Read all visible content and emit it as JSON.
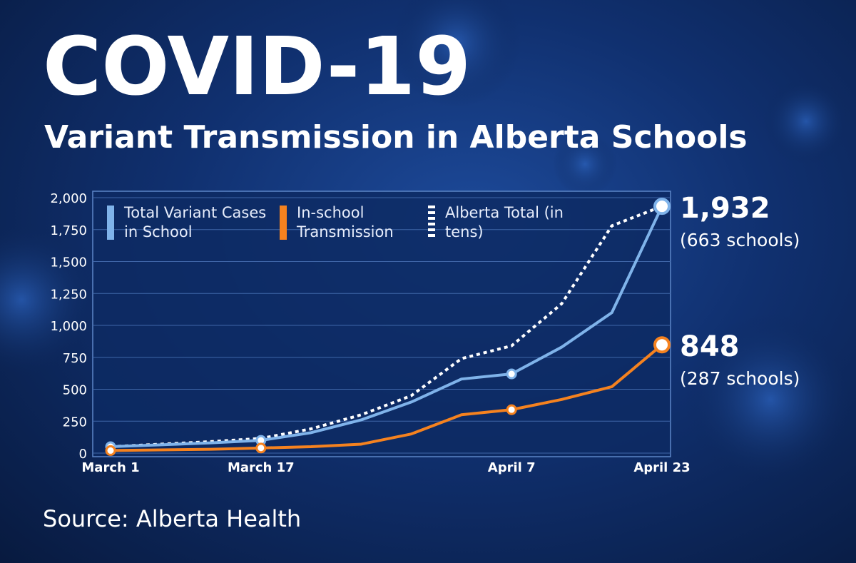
{
  "chart_data": {
    "type": "line",
    "title": "COVID-19",
    "subtitle": "Variant Transmission in Alberta Schools",
    "source": "Source: Alberta Health",
    "categories": [
      "March 1",
      null,
      null,
      "March 17",
      null,
      null,
      null,
      null,
      "April 7",
      null,
      null,
      "April 23"
    ],
    "ylim": [
      0,
      2000
    ],
    "yticks": [
      0,
      250,
      500,
      750,
      {
        "value": 1000,
        "label": "1,000"
      },
      {
        "value": 1250,
        "label": "1,250"
      },
      {
        "value": 1500,
        "label": "1,500"
      },
      {
        "value": 1750,
        "label": "1,750"
      },
      {
        "value": 2000,
        "label": "2,000"
      }
    ],
    "grid": true,
    "series": [
      {
        "name": "Total Variant Cases in School",
        "color": "#7fb3ea",
        "style": "solid",
        "values": [
          50,
          65,
          80,
          100,
          160,
          260,
          400,
          580,
          620,
          830,
          1100,
          1932
        ]
      },
      {
        "name": "In-school Transmission",
        "color": "#f5821f",
        "style": "solid",
        "values": [
          20,
          25,
          30,
          40,
          50,
          70,
          150,
          300,
          340,
          420,
          520,
          848
        ]
      },
      {
        "name": "Alberta Total (in tens)",
        "color": "#ffffff",
        "style": "dotted",
        "values": [
          50,
          70,
          90,
          115,
          190,
          300,
          450,
          740,
          840,
          1170,
          1780,
          1932
        ]
      }
    ],
    "annotations": [
      {
        "value": "1,932",
        "note": "(663 schools)"
      },
      {
        "value": "848",
        "note": "(287 schools)"
      }
    ]
  }
}
